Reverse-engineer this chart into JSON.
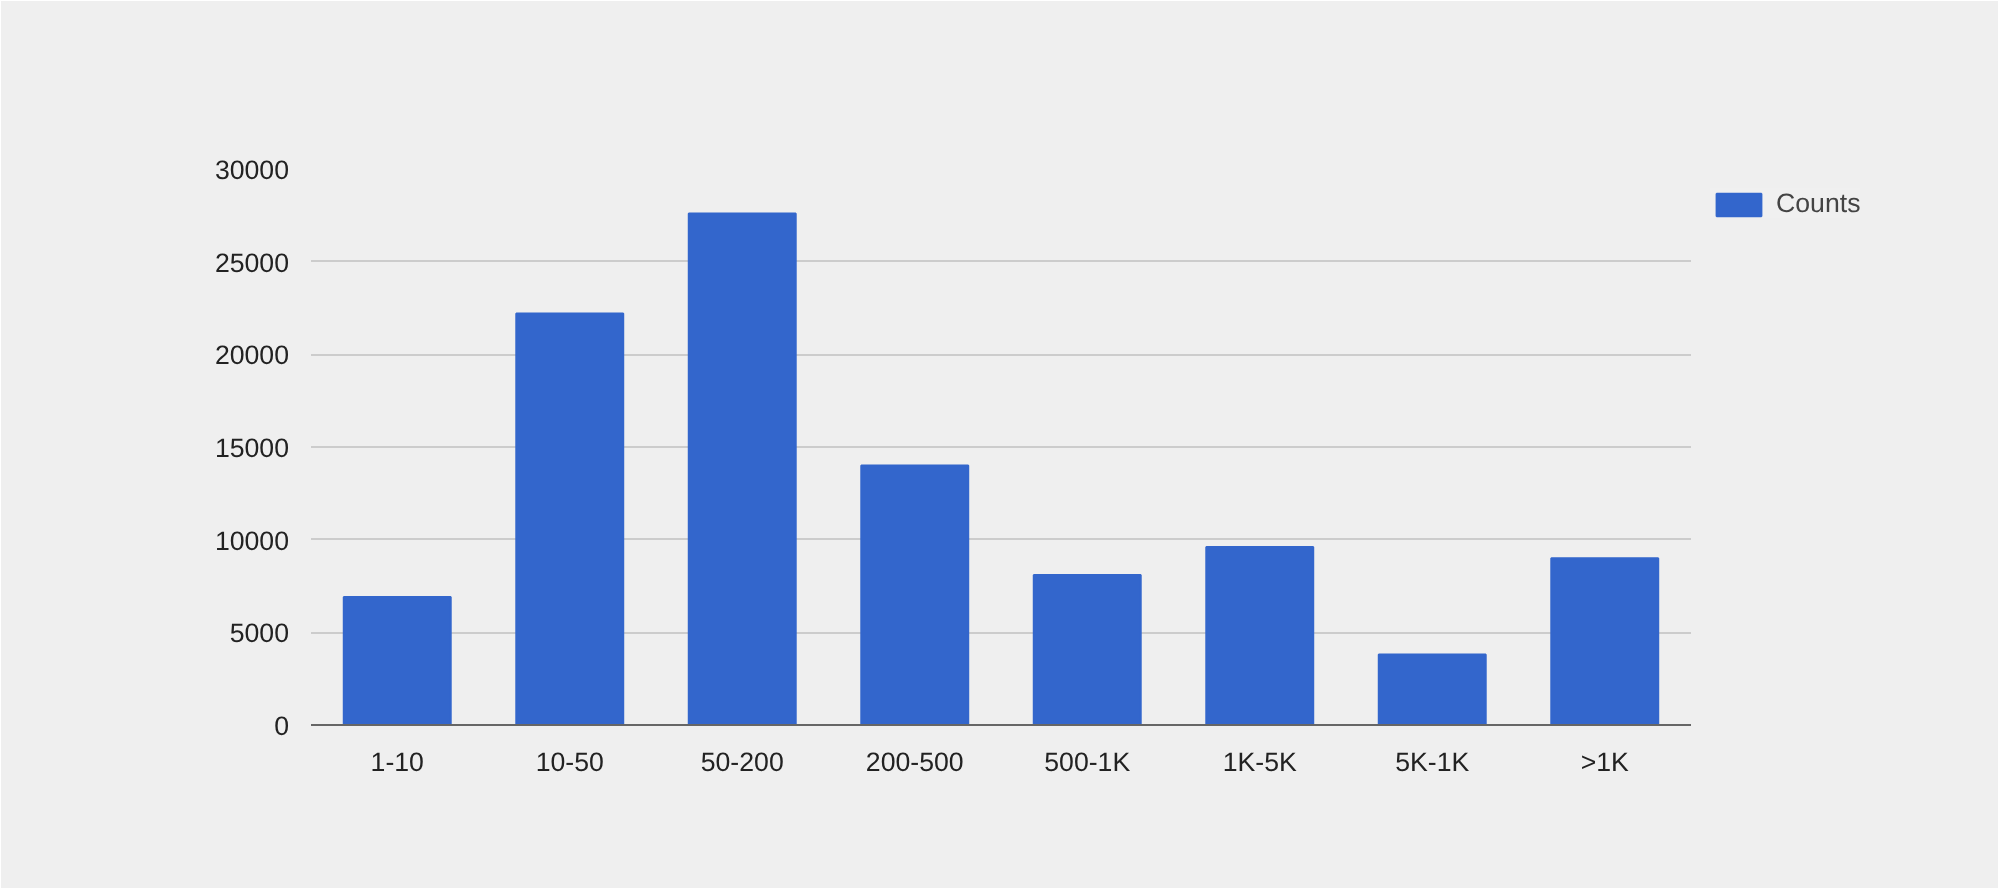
{
  "chart_data": {
    "type": "bar",
    "categories": [
      "1-10",
      "10-50",
      "50-200",
      "200-500",
      "500-1K",
      "1K-5K",
      "5K-1K",
      ">1K"
    ],
    "series": [
      {
        "name": "Counts",
        "color": "#3366cc",
        "values": [
          6900,
          22200,
          27600,
          14000,
          8100,
          9600,
          3800,
          9000
        ]
      }
    ],
    "ylim": [
      0,
      30000
    ],
    "yticks": [
      0,
      5000,
      10000,
      15000,
      20000,
      25000,
      30000
    ],
    "grid": "y",
    "legend": "right"
  }
}
